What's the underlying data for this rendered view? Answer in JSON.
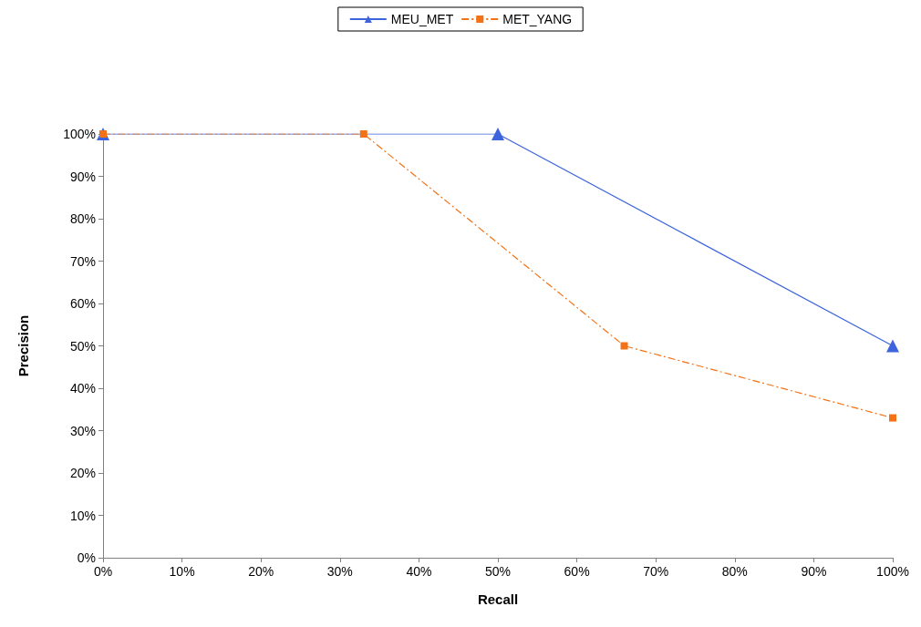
{
  "chart_data": {
    "type": "line",
    "xlabel": "Recall",
    "ylabel": "Precision",
    "legend": "top",
    "grid": false,
    "xlim": [
      0,
      100
    ],
    "ylim": [
      0,
      100
    ],
    "xticks": [
      {
        "value": 0,
        "label": "0%"
      },
      {
        "value": 10,
        "label": "10%"
      },
      {
        "value": 20,
        "label": "20%"
      },
      {
        "value": 30,
        "label": "30%"
      },
      {
        "value": 40,
        "label": "40%"
      },
      {
        "value": 50,
        "label": "50%"
      },
      {
        "value": 60,
        "label": "60%"
      },
      {
        "value": 70,
        "label": "70%"
      },
      {
        "value": 80,
        "label": "80%"
      },
      {
        "value": 90,
        "label": "90%"
      },
      {
        "value": 100,
        "label": "100%"
      }
    ],
    "yticks": [
      {
        "value": 0,
        "label": "0%"
      },
      {
        "value": 10,
        "label": "10%"
      },
      {
        "value": 20,
        "label": "20%"
      },
      {
        "value": 30,
        "label": "30%"
      },
      {
        "value": 40,
        "label": "40%"
      },
      {
        "value": 50,
        "label": "50%"
      },
      {
        "value": 60,
        "label": "60%"
      },
      {
        "value": 70,
        "label": "70%"
      },
      {
        "value": 80,
        "label": "80%"
      },
      {
        "value": 90,
        "label": "90%"
      },
      {
        "value": 100,
        "label": "100%"
      }
    ],
    "series": [
      {
        "name": "MEU_MET",
        "color": "#3c64dc",
        "marker": "triangle",
        "line_style": "solid",
        "x": [
          0,
          50,
          100
        ],
        "values": [
          100,
          100,
          50
        ]
      },
      {
        "name": "MET_YANG",
        "color": "#f47216",
        "marker": "square",
        "line_style": "dashed",
        "x": [
          0,
          33,
          66,
          100
        ],
        "values": [
          100,
          100,
          50,
          33
        ]
      }
    ]
  }
}
